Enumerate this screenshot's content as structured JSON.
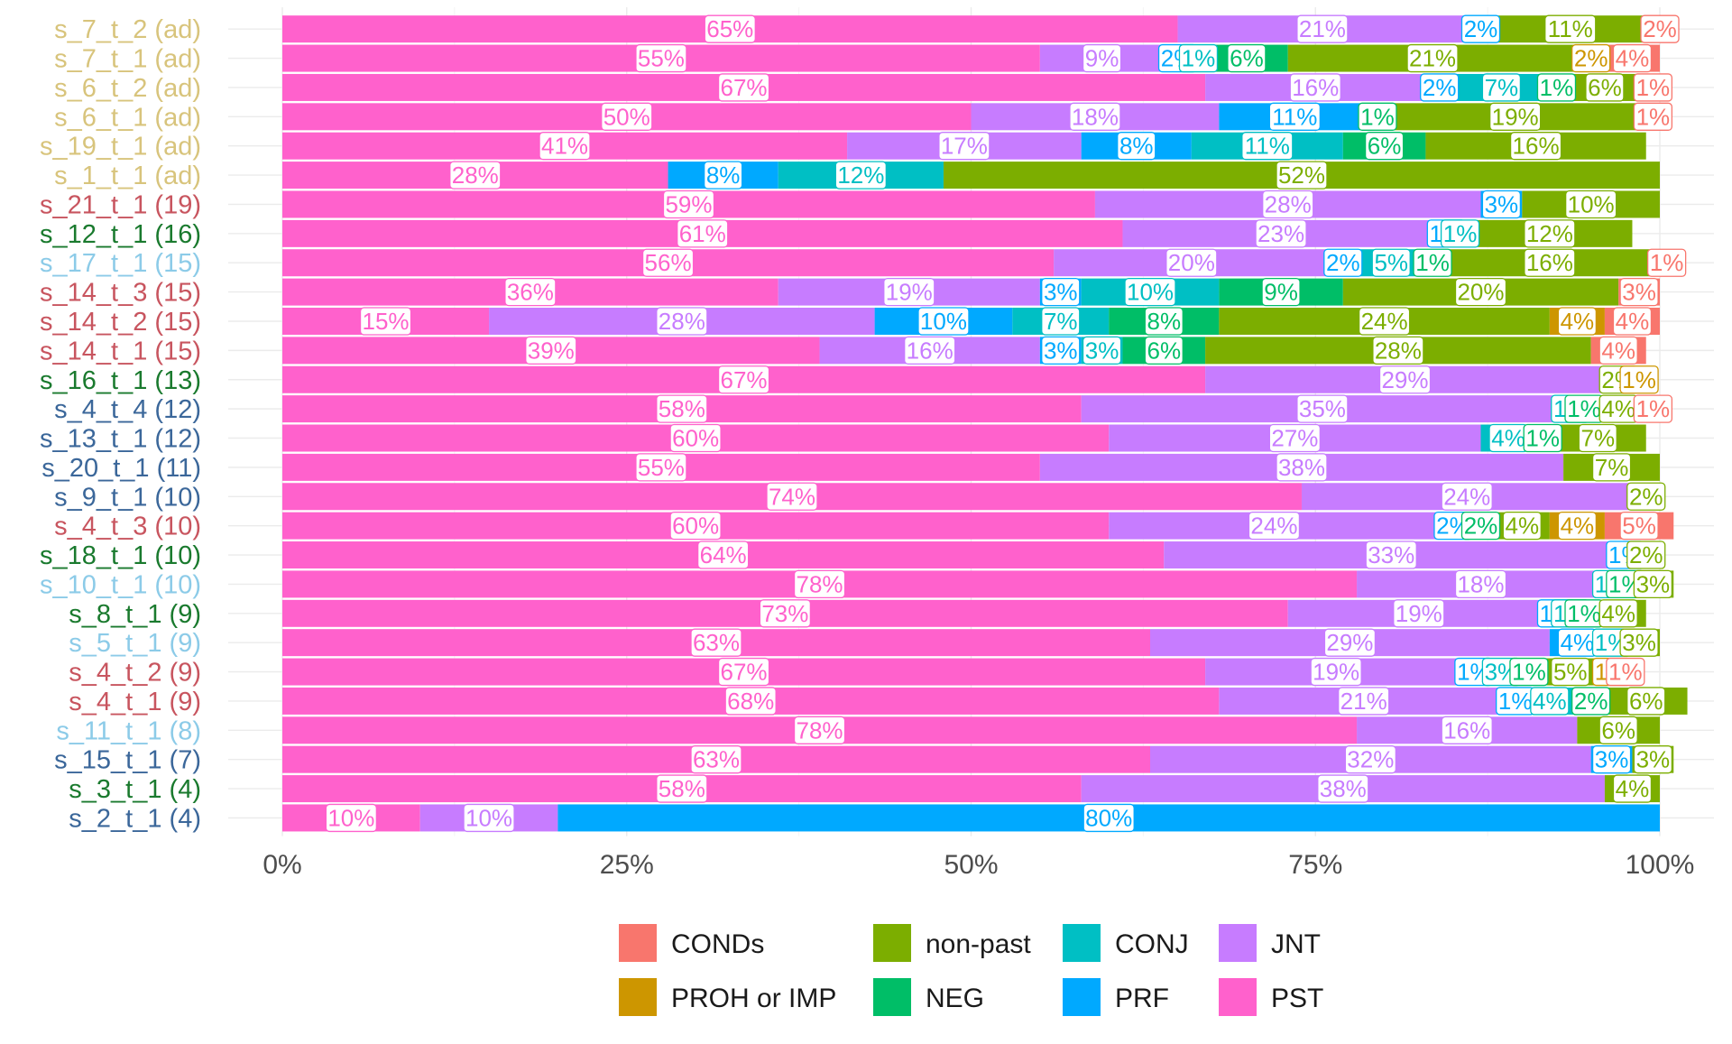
{
  "chart_data": {
    "type": "bar",
    "orientation": "horizontal",
    "stacked": true,
    "normalized": true,
    "title": "",
    "xlabel": "",
    "ylabel": "",
    "xlim": [
      0,
      100
    ],
    "x_ticks": [
      "0%",
      "25%",
      "50%",
      "75%",
      "100%"
    ],
    "grid": true,
    "legend_position": "bottom",
    "categories": [
      "s_7_t_2 (ad)",
      "s_7_t_1 (ad)",
      "s_6_t_2 (ad)",
      "s_6_t_1 (ad)",
      "s_19_t_1 (ad)",
      "s_1_t_1 (ad)",
      "s_21_t_1 (19)",
      "s_12_t_1 (16)",
      "s_17_t_1 (15)",
      "s_14_t_3 (15)",
      "s_14_t_2 (15)",
      "s_14_t_1 (15)",
      "s_16_t_1 (13)",
      "s_4_t_4 (12)",
      "s_13_t_1 (12)",
      "s_20_t_1 (11)",
      "s_9_t_1 (10)",
      "s_4_t_3 (10)",
      "s_18_t_1 (10)",
      "s_10_t_1 (10)",
      "s_8_t_1 (9)",
      "s_5_t_1 (9)",
      "s_4_t_2 (9)",
      "s_4_t_1 (9)",
      "s_11_t_1 (8)",
      "s_15_t_1 (7)",
      "s_3_t_1 (4)",
      "s_2_t_1 (4)"
    ],
    "category_colors": [
      "#d8c47c",
      "#d8c47c",
      "#d8c47c",
      "#d8c47c",
      "#d8c47c",
      "#d8c47c",
      "#c8555f",
      "#1a7a2e",
      "#8ccbe8",
      "#c8555f",
      "#c8555f",
      "#c8555f",
      "#1a7a2e",
      "#3b679a",
      "#3b679a",
      "#3b679a",
      "#3b679a",
      "#c8555f",
      "#1a7a2e",
      "#8ccbe8",
      "#1a7a2e",
      "#8ccbe8",
      "#c8555f",
      "#c8555f",
      "#8ccbe8",
      "#3b679a",
      "#1a7a2e",
      "#3b679a"
    ],
    "series": [
      {
        "name": "PST",
        "color": "#FF61CC",
        "values": [
          65,
          55,
          67,
          50,
          41,
          28,
          59,
          61,
          56,
          36,
          15,
          39,
          67,
          58,
          60,
          55,
          74,
          60,
          64,
          78,
          73,
          63,
          67,
          68,
          78,
          63,
          58,
          10
        ]
      },
      {
        "name": "JNT",
        "color": "#C77CFF",
        "values": [
          21,
          9,
          16,
          18,
          17,
          0,
          28,
          23,
          20,
          19,
          28,
          16,
          29,
          35,
          27,
          38,
          24,
          24,
          33,
          18,
          19,
          29,
          19,
          21,
          16,
          32,
          38,
          10
        ]
      },
      {
        "name": "PRF",
        "color": "#00A9FF",
        "values": [
          2,
          2,
          2,
          11,
          8,
          8,
          3,
          1,
          2,
          3,
          10,
          3,
          0,
          0,
          0,
          0,
          0,
          2,
          1,
          0,
          1,
          4,
          1,
          1,
          0,
          3,
          0,
          80
        ]
      },
      {
        "name": "CONJ",
        "color": "#00BFC4",
        "values": [
          0,
          1,
          7,
          0,
          11,
          12,
          0,
          1,
          5,
          10,
          7,
          3,
          0,
          1,
          4,
          0,
          0,
          0,
          0,
          1,
          1,
          1,
          3,
          4,
          0,
          0,
          0,
          0
        ]
      },
      {
        "name": "NEG",
        "color": "#00BE67",
        "values": [
          0,
          6,
          1,
          1,
          6,
          0,
          0,
          0,
          1,
          9,
          8,
          6,
          0,
          1,
          1,
          0,
          0,
          2,
          0,
          1,
          1,
          0,
          1,
          2,
          0,
          0,
          0,
          0
        ]
      },
      {
        "name": "non-past",
        "color": "#7CAE00",
        "values": [
          11,
          21,
          6,
          19,
          16,
          52,
          10,
          12,
          16,
          20,
          24,
          28,
          2,
          4,
          7,
          7,
          2,
          4,
          2,
          3,
          4,
          3,
          5,
          6,
          6,
          3,
          4,
          0
        ]
      },
      {
        "name": "PROH or IMP",
        "color": "#CD9600",
        "values": [
          0,
          2,
          0,
          0,
          0,
          0,
          0,
          0,
          0,
          0,
          4,
          0,
          1,
          0,
          0,
          0,
          0,
          4,
          0,
          0,
          0,
          0,
          1,
          0,
          0,
          0,
          0,
          0
        ]
      },
      {
        "name": "CONDs",
        "color": "#F8766D",
        "values": [
          2,
          4,
          1,
          1,
          0,
          0,
          0,
          0,
          1,
          3,
          4,
          4,
          0,
          1,
          0,
          0,
          0,
          5,
          0,
          0,
          0,
          0,
          1,
          0,
          0,
          0,
          0,
          0
        ]
      }
    ],
    "legend_order": [
      "CONDs",
      "PROH or IMP",
      "non-past",
      "NEG",
      "CONJ",
      "PRF",
      "JNT",
      "PST"
    ]
  }
}
